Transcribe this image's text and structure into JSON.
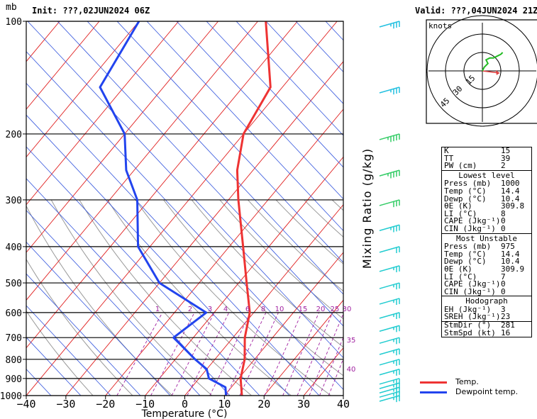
{
  "header": {
    "init_label": "Init: ???,02JUN2024 06Z",
    "valid_label": "Valid: ???,04JUN2024 21Z"
  },
  "axes": {
    "pressure_unit": "mb",
    "x_label": "Temperature (°C)",
    "mix_label": "Mixing Ratio (g/kg)",
    "pressure_ticks": [
      100,
      200,
      300,
      400,
      500,
      600,
      700,
      800,
      900,
      1000
    ],
    "temp_ticks": [
      "−40",
      "−30",
      "−20",
      "−10",
      "0",
      "10",
      "20",
      "30",
      "40"
    ],
    "mix_ratio_labels": [
      "1",
      "2",
      "3",
      "4",
      "6",
      "8",
      "10",
      "15",
      "20",
      "25",
      "30",
      "35",
      "40"
    ]
  },
  "hodograph": {
    "title": "knots",
    "ring_labels": [
      "15",
      "30",
      "45"
    ]
  },
  "indices": {
    "top": [
      {
        "k": "K",
        "v": "15"
      },
      {
        "k": "TT",
        "v": "39"
      },
      {
        "k": "PW (cm)",
        "v": "2"
      }
    ],
    "lowest_title": "Lowest level",
    "lowest": [
      {
        "k": "Press (mb)",
        "v": "1000"
      },
      {
        "k": "Temp (°C)",
        "v": "14.4"
      },
      {
        "k": "Dewp (°C)",
        "v": "10.4"
      },
      {
        "k": "θE (K)",
        "v": "309.8"
      },
      {
        "k": "LI (°C)",
        "v": "8"
      },
      {
        "k": "CAPE (Jkg⁻¹)",
        "v": "0"
      },
      {
        "k": "CIN (Jkg⁻¹)",
        "v": "0"
      }
    ],
    "unstable_title": "Most Unstable",
    "unstable": [
      {
        "k": "Press (mb)",
        "v": "975"
      },
      {
        "k": "Temp (°C)",
        "v": "14.4"
      },
      {
        "k": "Dewp (°C)",
        "v": "10.4"
      },
      {
        "k": "θE (K)",
        "v": "309.9"
      },
      {
        "k": "LI (°C)",
        "v": "7"
      },
      {
        "k": "CAPE (Jkg⁻¹)",
        "v": "0"
      },
      {
        "k": "CIN (Jkg⁻¹)",
        "v": "0"
      }
    ],
    "hodo_title": "Hodograph",
    "hodo": [
      {
        "k": "EH (Jkg⁻¹)",
        "v": "3"
      },
      {
        "k": "SREH (Jkg⁻¹)",
        "v": "23"
      }
    ],
    "storm": [
      {
        "k": "StmDir (°)",
        "v": "281"
      },
      {
        "k": "StmSpd (kt)",
        "v": "16"
      }
    ]
  },
  "legend": {
    "temp_label": "Temp.",
    "dewp_label": "Dewpoint temp."
  },
  "chart_data": {
    "type": "line",
    "series": [
      {
        "name": "Temp.",
        "color": "#ee3333",
        "points": [
          [
            1000,
            14.4
          ],
          [
            900,
            10.5
          ],
          [
            800,
            7.5
          ],
          [
            700,
            3
          ],
          [
            600,
            -1
          ],
          [
            500,
            -8
          ],
          [
            400,
            -16.5
          ],
          [
            300,
            -27.5
          ],
          [
            250,
            -34
          ],
          [
            200,
            -40
          ],
          [
            150,
            -43
          ],
          [
            100,
            -58
          ]
        ]
      },
      {
        "name": "Dewpoint temp.",
        "color": "#2244ee",
        "points": [
          [
            1000,
            10.4
          ],
          [
            950,
            8.5
          ],
          [
            900,
            2.5
          ],
          [
            850,
            0
          ],
          [
            800,
            -5
          ],
          [
            700,
            -15
          ],
          [
            600,
            -12
          ],
          [
            500,
            -30
          ],
          [
            400,
            -43
          ],
          [
            300,
            -53
          ],
          [
            250,
            -62
          ],
          [
            200,
            -70
          ],
          [
            150,
            -86
          ],
          [
            100,
            -90
          ]
        ]
      }
    ],
    "x_range": [
      -40,
      40
    ],
    "y_range_mb": [
      1000,
      100
    ],
    "y_scale": "log",
    "wind_barbs_kt": [
      {
        "p": 100,
        "spd": 25
      },
      {
        "p": 150,
        "spd": 25
      },
      {
        "p": 200,
        "spd": 35
      },
      {
        "p": 250,
        "spd": 35
      },
      {
        "p": 300,
        "spd": 30
      },
      {
        "p": 350,
        "spd": 25
      },
      {
        "p": 400,
        "spd": 20
      },
      {
        "p": 450,
        "spd": 15
      },
      {
        "p": 500,
        "spd": 15
      },
      {
        "p": 550,
        "spd": 15
      },
      {
        "p": 600,
        "spd": 15
      },
      {
        "p": 650,
        "spd": 15
      },
      {
        "p": 700,
        "spd": 15
      },
      {
        "p": 750,
        "spd": 15
      },
      {
        "p": 800,
        "spd": 15
      },
      {
        "p": 850,
        "spd": 15
      },
      {
        "p": 900,
        "spd": 15
      },
      {
        "p": 925,
        "spd": 15
      },
      {
        "p": 950,
        "spd": 15
      },
      {
        "p": 975,
        "spd": 15
      },
      {
        "p": 1000,
        "spd": 15
      }
    ],
    "hodograph_uv": [
      [
        0,
        0
      ],
      [
        1,
        2
      ],
      [
        3,
        4
      ],
      [
        2,
        6
      ],
      [
        4,
        7
      ],
      [
        6,
        7
      ],
      [
        8,
        8
      ],
      [
        10,
        9
      ],
      [
        11,
        10
      ]
    ]
  }
}
